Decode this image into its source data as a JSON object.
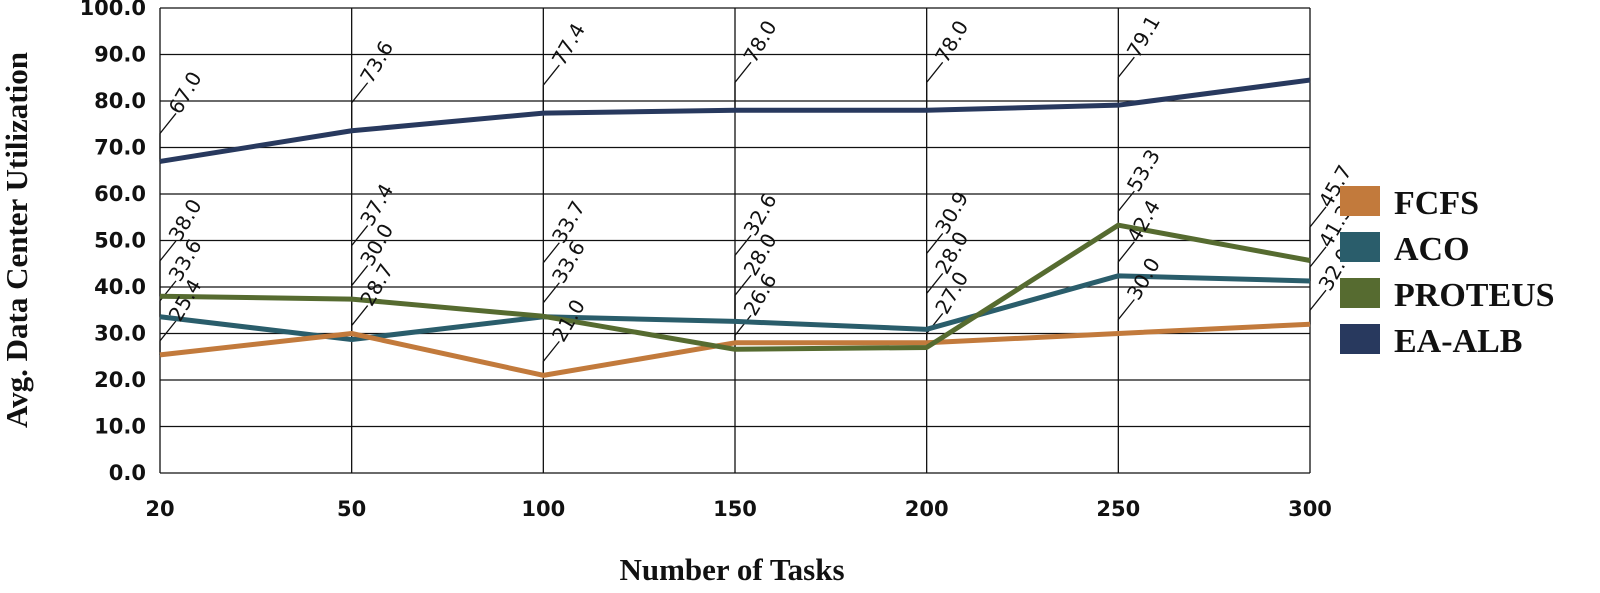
{
  "chart_data": {
    "type": "line",
    "title": "",
    "xlabel": "Number of Tasks",
    "ylabel": "Avg. Data Center Utilization",
    "categories": [
      "20",
      "50",
      "100",
      "150",
      "200",
      "250",
      "300"
    ],
    "y_ticks": [
      "0.0",
      "10.0",
      "20.0",
      "30.0",
      "40.0",
      "50.0",
      "60.0",
      "70.0",
      "80.0",
      "90.0",
      "100.0"
    ],
    "ylim": [
      0,
      100
    ],
    "grid": true,
    "legend_position": "right",
    "series": [
      {
        "name": "FCFS",
        "color": "#c27a3c",
        "values": [
          25.4,
          30.0,
          21.0,
          28.0,
          28.0,
          30.0,
          32.0
        ],
        "labels": [
          "25.4",
          "30.0",
          "21.0",
          "28.0",
          "28.0",
          "30.0",
          "32.0"
        ]
      },
      {
        "name": "ACO",
        "color": "#2a5d6b",
        "values": [
          33.6,
          28.7,
          33.6,
          32.6,
          30.9,
          42.4,
          41.3
        ],
        "labels": [
          "33.6",
          "28.7",
          "33.6",
          "32.6",
          "30.9",
          "42.4",
          "41.3"
        ]
      },
      {
        "name": "PROTEUS",
        "color": "#566b30",
        "values": [
          38.0,
          37.4,
          33.7,
          26.6,
          27.0,
          53.3,
          45.7
        ],
        "labels": [
          "38.0",
          "37.4",
          "33.7",
          "26.6",
          "27.0",
          "53.3",
          "45.7"
        ]
      },
      {
        "name": "EA-ALB",
        "color": "#28395e",
        "values": [
          67.0,
          73.6,
          77.4,
          78.0,
          78.0,
          79.1,
          84.5
        ],
        "labels": [
          "67.0",
          "73.6",
          "77.4",
          "78.0",
          "78.0",
          "79.1",
          ""
        ]
      }
    ]
  }
}
